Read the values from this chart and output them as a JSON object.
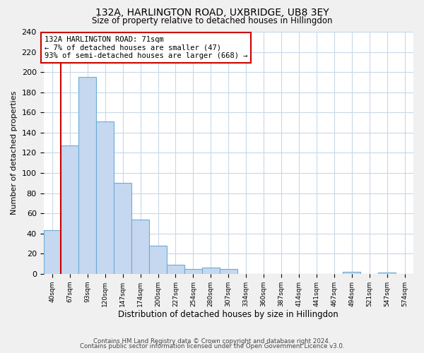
{
  "title1": "132A, HARLINGTON ROAD, UXBRIDGE, UB8 3EY",
  "title2": "Size of property relative to detached houses in Hillingdon",
  "xlabel": "Distribution of detached houses by size in Hillingdon",
  "ylabel": "Number of detached properties",
  "bin_labels": [
    "40sqm",
    "67sqm",
    "93sqm",
    "120sqm",
    "147sqm",
    "174sqm",
    "200sqm",
    "227sqm",
    "254sqm",
    "280sqm",
    "307sqm",
    "334sqm",
    "360sqm",
    "387sqm",
    "414sqm",
    "441sqm",
    "467sqm",
    "494sqm",
    "521sqm",
    "547sqm",
    "574sqm"
  ],
  "bar_heights": [
    43,
    127,
    195,
    151,
    90,
    54,
    28,
    9,
    5,
    6,
    5,
    0,
    0,
    0,
    0,
    0,
    0,
    2,
    0,
    1,
    0
  ],
  "bar_color": "#c5d8f0",
  "bar_edge_color": "#6aacd8",
  "bar_edge_width": 0.8,
  "vline_x": 0.5,
  "vline_color": "#cc0000",
  "annotation_line1": "132A HARLINGTON ROAD: 71sqm",
  "annotation_line2": "← 7% of detached houses are smaller (47)",
  "annotation_line3": "93% of semi-detached houses are larger (668) →",
  "ylim": [
    0,
    240
  ],
  "yticks": [
    0,
    20,
    40,
    60,
    80,
    100,
    120,
    140,
    160,
    180,
    200,
    220,
    240
  ],
  "footer_line1": "Contains HM Land Registry data © Crown copyright and database right 2024.",
  "footer_line2": "Contains public sector information licensed under the Open Government Licence v3.0.",
  "bg_color": "#f0f0f0",
  "plot_bg_color": "#ffffff",
  "grid_color": "#c8d8e8"
}
